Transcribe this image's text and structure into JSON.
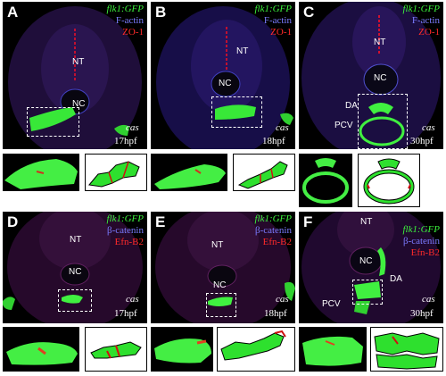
{
  "panels": {
    "A": {
      "letter": "A",
      "marker_green": "flk1:GFP",
      "marker_blue": "F-actin",
      "marker_red": "ZO-1",
      "region_top": "NT",
      "region_mid": "NC",
      "genotype": "cas",
      "stage": "17hpf"
    },
    "B": {
      "letter": "B",
      "marker_green": "flk1:GFP",
      "marker_blue": "F-actin",
      "marker_red": "ZO-1",
      "region_top": "NT",
      "region_mid": "NC",
      "genotype": "cas",
      "stage": "18hpf"
    },
    "C": {
      "letter": "C",
      "marker_green": "flk1:GFP",
      "marker_blue": "F-actin",
      "marker_red": "ZO-1",
      "region_top": "NT",
      "region_mid": "NC",
      "vessel_1": "DA",
      "vessel_2": "PCV",
      "genotype": "cas",
      "stage": "30hpf"
    },
    "D": {
      "letter": "D",
      "marker_green": "flk1:GFP",
      "marker_blue": "β-catenin",
      "marker_red": "Efn-B2",
      "region_top": "NT",
      "region_mid": "NC",
      "genotype": "cas",
      "stage": "17hpf"
    },
    "E": {
      "letter": "E",
      "marker_green": "flk1:GFP",
      "marker_blue": "β-catenin",
      "marker_red": "Efn-B2",
      "region_top": "NT",
      "region_mid": "NC",
      "genotype": "cas",
      "stage": "18hpf"
    },
    "F": {
      "letter": "F",
      "marker_green": "flk1:GFP",
      "marker_blue": "β-catenin",
      "marker_red": "Efn-B2",
      "region_top": "NT",
      "region_mid": "NC",
      "vessel_1": "DA",
      "vessel_2": "PCV",
      "genotype": "cas",
      "stage": "30hpf"
    }
  },
  "colors": {
    "green": "#3cf23c",
    "blue": "#7b7bff",
    "red": "#ff2a2a",
    "background": "#000000"
  }
}
